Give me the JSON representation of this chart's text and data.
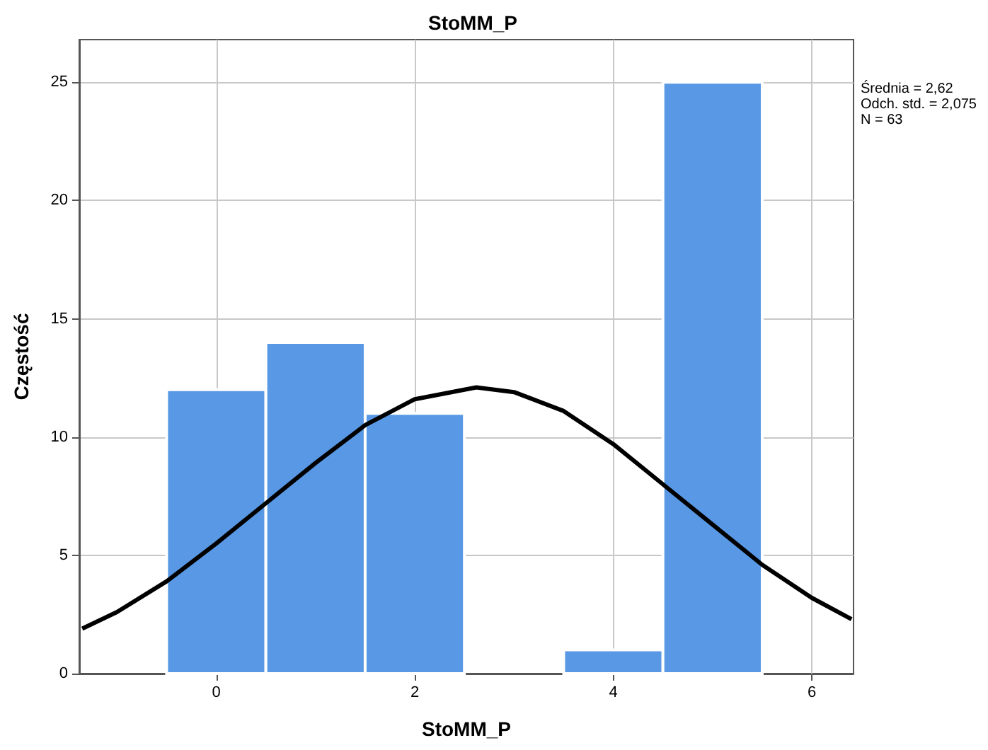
{
  "chart_data": {
    "type": "histogram",
    "title": "StoMM_P",
    "xlabel": "StoMM_P",
    "ylabel": "Częstość",
    "annotations": [
      "Średnia = 2,62",
      "Odch. std. = 2,075",
      "N = 63"
    ],
    "series": [
      {
        "color": "#5898e4",
        "bins": [
          -0.5,
          0.5,
          1.5,
          2.5,
          3.5,
          4.5,
          5.5
        ],
        "values": [
          12,
          14,
          11,
          0,
          1,
          25
        ]
      },
      {
        "type": "line",
        "color": "#000000",
        "marker": "none",
        "x": [
          -1.35,
          -1,
          -0.5,
          0,
          0.5,
          1,
          1.5,
          2,
          2.62,
          3,
          3.5,
          4,
          4.5,
          5,
          5.5,
          6,
          6.4
        ],
        "values": [
          1.9,
          2.6,
          3.9,
          5.5,
          7.2,
          8.9,
          10.5,
          11.6,
          12.1,
          11.9,
          11.1,
          9.7,
          8.0,
          6.3,
          4.6,
          3.2,
          2.3
        ]
      }
    ],
    "xlim": [
      -1.38,
      6.42
    ],
    "xticks": [
      0,
      2,
      4,
      6
    ],
    "ylim": [
      0,
      26.8
    ],
    "yticks": [
      0,
      5,
      10,
      15,
      20,
      25
    ],
    "grid": true
  }
}
